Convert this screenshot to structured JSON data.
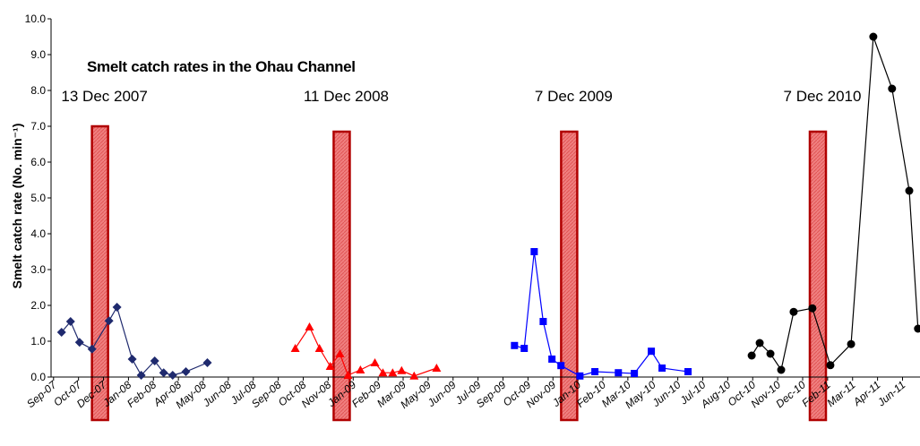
{
  "chart_data": {
    "type": "line",
    "title": "Smelt catch rates in the Ohau Channel",
    "y_label": "Smelt catch rate (No. min⁻¹)",
    "categories": [
      "Sep-07",
      "Oct-07",
      "Dec-07",
      "Jan-08",
      "Feb-08",
      "Apr-08",
      "May-08",
      "Jun-08",
      "Jul-08",
      "Sep-08",
      "Oct-08",
      "Nov-08",
      "Jan-09",
      "Feb-09",
      "Mar-09",
      "May-09",
      "Jun-09",
      "Jul-09",
      "Sep-09",
      "Oct-09",
      "Nov-09",
      "Jan-10",
      "Feb-10",
      "Mar-10",
      "May-10",
      "Jun-10",
      "Jul-10",
      "Aug-10",
      "Oct-10",
      "Nov-10",
      "Dec-10",
      "Feb-11",
      "Mar-11",
      "Apr-11",
      "Jun-11"
    ],
    "xlim": [
      -0.1,
      34.7
    ],
    "ylim": [
      0,
      10
    ],
    "yticks": [
      {
        "value": 0,
        "label": "0.0"
      },
      {
        "value": 1,
        "label": "1.0"
      },
      {
        "value": 2,
        "label": "2.0"
      },
      {
        "value": 3,
        "label": "3.0"
      },
      {
        "value": 4,
        "label": "4.0"
      },
      {
        "value": 5,
        "label": "5.0"
      },
      {
        "value": 6,
        "label": "6.0"
      },
      {
        "value": 7,
        "label": "7.0"
      },
      {
        "value": 8,
        "label": "8.0"
      },
      {
        "value": 9,
        "label": "9.0"
      },
      {
        "value": 10,
        "label": "10.0"
      }
    ],
    "series": [
      {
        "color": "#1f2a6e",
        "marker": "diamond",
        "x": [
          0.32,
          0.68,
          1.04,
          1.54,
          2.22,
          2.54,
          3.15,
          3.51,
          4.05,
          4.41,
          4.77,
          5.3,
          6.16
        ],
        "values": [
          1.25,
          1.55,
          0.97,
          0.78,
          1.57,
          1.95,
          0.5,
          0.05,
          0.45,
          0.12,
          0.05,
          0.15,
          0.4
        ]
      },
      {
        "color": "#ff0000",
        "marker": "triangle",
        "x": [
          9.68,
          10.25,
          10.65,
          11.08,
          11.47,
          11.79,
          12.29,
          12.87,
          13.19,
          13.58,
          13.94,
          14.44,
          15.34
        ],
        "values": [
          0.8,
          1.4,
          0.8,
          0.3,
          0.65,
          0.05,
          0.2,
          0.4,
          0.12,
          0.12,
          0.18,
          0.03,
          0.25
        ]
      },
      {
        "color": "#0000ff",
        "marker": "square",
        "x": [
          18.46,
          18.85,
          19.25,
          19.61,
          19.96,
          20.32,
          21.08,
          21.68,
          22.62,
          23.26,
          23.94,
          24.37,
          25.41
        ],
        "values": [
          0.88,
          0.8,
          3.5,
          1.55,
          0.5,
          0.32,
          0.03,
          0.15,
          0.12,
          0.1,
          0.72,
          0.25,
          0.15
        ]
      },
      {
        "color": "#000000",
        "marker": "circle",
        "x": [
          27.96,
          28.28,
          28.71,
          29.14,
          29.64,
          30.39,
          31.11,
          31.94,
          32.83,
          33.58,
          34.27,
          34.62
        ],
        "values": [
          0.6,
          0.95,
          0.65,
          0.2,
          1.82,
          1.92,
          0.33,
          0.92,
          9.5,
          8.05,
          5.2,
          1.35
        ]
      }
    ],
    "annotations": [
      {
        "text": "13 Dec 2007",
        "x": 1.86,
        "ymax": 7.0
      },
      {
        "text": "11 Dec 2008",
        "x": 11.54,
        "ymax": 6.85
      },
      {
        "text": "7 Dec 2009",
        "x": 20.65,
        "ymax": 6.85
      },
      {
        "text": "7 Dec 2010",
        "x": 30.61,
        "ymax": 6.85
      }
    ]
  }
}
